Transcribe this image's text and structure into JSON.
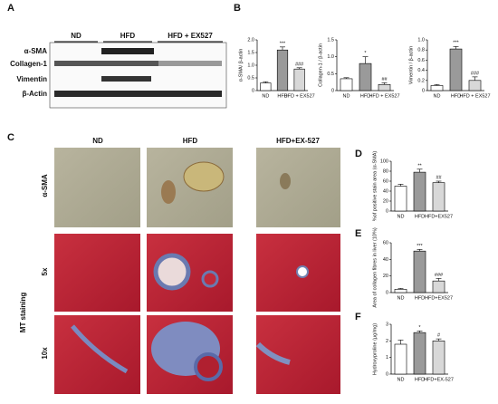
{
  "blot": {
    "label": "A",
    "groups": [
      "ND",
      "HFD",
      "HFD + EX527"
    ],
    "rows": [
      "α-SMA",
      "Collagen-1",
      "Vimentin",
      "β-Actin"
    ]
  },
  "histology": {
    "label": "C",
    "columns": [
      "ND",
      "HFD",
      "HFD+EX-527"
    ],
    "rows": [
      "α-SMA",
      "5x",
      "10x"
    ],
    "side_label": "MT staining"
  },
  "chart_data": [
    {
      "type": "bar",
      "panel": "B",
      "ylabel": "α-SMA/ β-actin",
      "categories": [
        "ND",
        "HFD",
        "HFD + EX527"
      ],
      "values": [
        0.3,
        1.6,
        0.85
      ],
      "errors": [
        0.05,
        0.12,
        0.05
      ],
      "colors": [
        "#ffffff",
        "#9a9a9a",
        "#d8d8d8"
      ],
      "ylim": [
        0,
        2
      ],
      "yticks": [
        0,
        0.5,
        {
          "value": 1,
          "label": "1.0"
        },
        1.5,
        {
          "value": 2,
          "label": "2.0"
        }
      ],
      "annotations": [
        null,
        "***",
        "###"
      ]
    },
    {
      "type": "bar",
      "ylabel": "Collagen-1 / β-actin",
      "categories": [
        "ND",
        "HFD",
        "HFD + EX527"
      ],
      "values": [
        0.35,
        0.8,
        0.18
      ],
      "errors": [
        0.03,
        0.2,
        0.05
      ],
      "colors": [
        "#ffffff",
        "#9a9a9a",
        "#d8d8d8"
      ],
      "ylim": [
        0,
        1.5
      ],
      "yticks": [
        0,
        0.5,
        {
          "value": 1,
          "label": "1.0"
        },
        1.5
      ],
      "annotations": [
        null,
        "*",
        "##"
      ]
    },
    {
      "type": "bar",
      "ylabel": "Vimentin / β-actin",
      "categories": [
        "ND",
        "HFD",
        "HFD + EX527"
      ],
      "values": [
        0.1,
        0.82,
        0.2
      ],
      "errors": [
        0.02,
        0.05,
        0.07
      ],
      "colors": [
        "#ffffff",
        "#9a9a9a",
        "#d8d8d8"
      ],
      "ylim": [
        0,
        1
      ],
      "yticks": [
        0,
        0.2,
        0.4,
        0.6,
        0.8,
        {
          "value": 1,
          "label": "1.0"
        }
      ],
      "annotations": [
        null,
        "***",
        "###"
      ]
    },
    {
      "type": "bar",
      "panel": "D",
      "ylabel": "%of positive stain area (α-SMA)",
      "categories": [
        "ND",
        "HFD",
        "HFD+EX527"
      ],
      "values": [
        50,
        78,
        57
      ],
      "errors": [
        4,
        6,
        3
      ],
      "colors": [
        "#ffffff",
        "#9a9a9a",
        "#d8d8d8"
      ],
      "ylim": [
        0,
        100
      ],
      "yticks": [
        0,
        20,
        40,
        60,
        80,
        100
      ],
      "annotations": [
        null,
        "**",
        "##"
      ]
    },
    {
      "type": "bar",
      "panel": "E",
      "ylabel": "Area of collagen fibres in liver (10%)",
      "categories": [
        "ND",
        "HFD",
        "HFD+EX527"
      ],
      "values": [
        4,
        50,
        14
      ],
      "errors": [
        1,
        2,
        3
      ],
      "colors": [
        "#ffffff",
        "#9a9a9a",
        "#d8d8d8"
      ],
      "ylim": [
        0,
        60
      ],
      "yticks": [
        0,
        20,
        40,
        60
      ],
      "annotations": [
        null,
        "***",
        "###"
      ]
    },
    {
      "type": "bar",
      "panel": "F",
      "ylabel": "Hydroxyproline (μg/mg)",
      "categories": [
        "ND",
        "HFD",
        "HFD+EX-527"
      ],
      "values": [
        1.8,
        2.5,
        2.0
      ],
      "errors": [
        0.25,
        0.1,
        0.12
      ],
      "colors": [
        "#ffffff",
        "#9a9a9a",
        "#d8d8d8"
      ],
      "ylim": [
        0,
        3
      ],
      "yticks": [
        0,
        1,
        2,
        3
      ],
      "annotations": [
        null,
        "*",
        "#"
      ]
    }
  ]
}
